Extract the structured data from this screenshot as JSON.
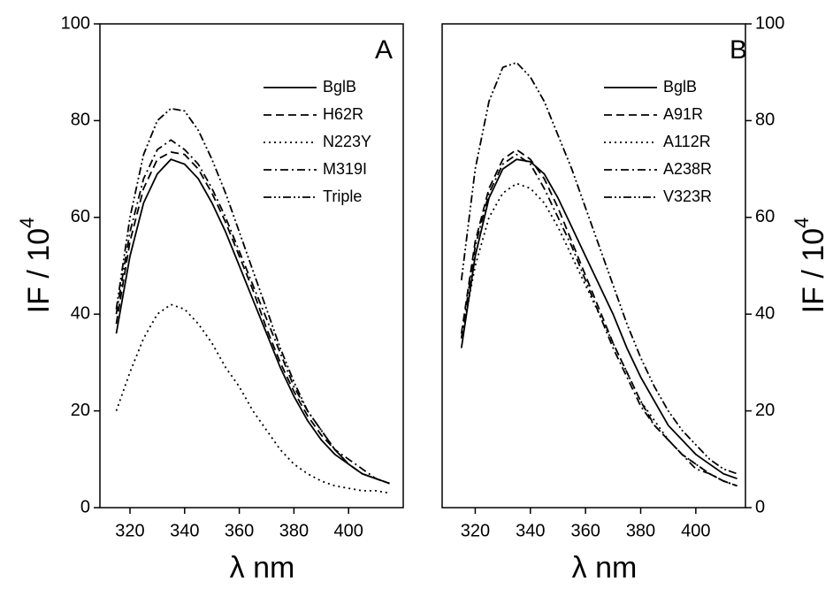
{
  "chart_data": [
    {
      "type": "line",
      "annotation": "A",
      "xlabel": "λ nm",
      "ylabel": "IF / 10",
      "ylabel_exponent": "4",
      "y_axis_side": "left",
      "xlim": [
        309,
        420
      ],
      "xticks": [
        320,
        340,
        360,
        380,
        400
      ],
      "ylim": [
        0,
        100
      ],
      "yticks": [
        0,
        20,
        40,
        60,
        80,
        100
      ],
      "legend": "top-right",
      "x": [
        315,
        320,
        325,
        330,
        335,
        340,
        345,
        350,
        355,
        360,
        365,
        370,
        375,
        380,
        385,
        390,
        395,
        400,
        405,
        410,
        415
      ],
      "series": [
        {
          "name": "BglB",
          "color": "#000000",
          "dash": "solid",
          "values": [
            36,
            52,
            63,
            69,
            72,
            71,
            68,
            63,
            57,
            50,
            43,
            36,
            29,
            23,
            18,
            14,
            11,
            9,
            7,
            6,
            5
          ]
        },
        {
          "name": "H62R",
          "color": "#000000",
          "dash": "dashed",
          "values": [
            38,
            55,
            66,
            72,
            73.5,
            73,
            70,
            65,
            59,
            52,
            45,
            37,
            30,
            24,
            19,
            15,
            12,
            9,
            7,
            6,
            5
          ]
        },
        {
          "name": "N223Y",
          "color": "#000000",
          "dash": "dotted",
          "values": [
            20,
            28,
            35,
            40,
            42,
            41,
            38,
            34,
            29,
            25,
            20,
            16,
            12,
            9,
            7,
            5.5,
            4.5,
            4,
            3.5,
            3.5,
            3
          ]
        },
        {
          "name": "M319I",
          "color": "#000000",
          "dash": "dash-dot",
          "values": [
            40,
            57,
            68,
            74,
            76,
            74,
            71,
            66,
            60,
            53,
            46,
            39,
            32,
            25,
            20,
            16,
            12,
            10,
            8,
            6,
            5
          ]
        },
        {
          "name": "Triple",
          "color": "#000000",
          "dash": "dash-dot-dot",
          "values": [
            41,
            60,
            73,
            80,
            82.5,
            82,
            78,
            72,
            65,
            57,
            49,
            41,
            33,
            26,
            20,
            16,
            12,
            9,
            7,
            6,
            5
          ]
        }
      ]
    },
    {
      "type": "line",
      "annotation": "B",
      "xlabel": "λ nm",
      "ylabel": "IF / 10",
      "ylabel_exponent": "4",
      "y_axis_side": "right",
      "xlim": [
        308,
        418
      ],
      "xticks": [
        320,
        340,
        360,
        380,
        400
      ],
      "ylim": [
        0,
        100
      ],
      "yticks": [
        0,
        20,
        40,
        60,
        80,
        100
      ],
      "legend": "top-right",
      "x": [
        315,
        320,
        325,
        330,
        335,
        340,
        345,
        350,
        355,
        360,
        365,
        370,
        375,
        380,
        385,
        390,
        395,
        400,
        405,
        410,
        415
      ],
      "series": [
        {
          "name": "BglB",
          "color": "#000000",
          "dash": "solid",
          "values": [
            33,
            52,
            64,
            70,
            72,
            71.5,
            69,
            64,
            58,
            52,
            46,
            40,
            33,
            27,
            22,
            17,
            14,
            11,
            9,
            7,
            6
          ]
        },
        {
          "name": "A91R",
          "color": "#000000",
          "dash": "dashed",
          "values": [
            36,
            55,
            66,
            72,
            74,
            72,
            68,
            62,
            55,
            48,
            41,
            34,
            28,
            22,
            17,
            14,
            11,
            9,
            7,
            5.5,
            4.5
          ]
        },
        {
          "name": "A112R",
          "color": "#000000",
          "dash": "dotted",
          "values": [
            35,
            50,
            60,
            65,
            67,
            66,
            63,
            58,
            52,
            46,
            40,
            34,
            28,
            22,
            18,
            14,
            11,
            9,
            7,
            5.5,
            4.5
          ]
        },
        {
          "name": "A238R",
          "color": "#000000",
          "dash": "dash-dot",
          "values": [
            35,
            54,
            65,
            71,
            73,
            71,
            66,
            60,
            54,
            47,
            40,
            33,
            27,
            21,
            17,
            14,
            11,
            8,
            7,
            5.5,
            4.5
          ]
        },
        {
          "name": "V323R",
          "color": "#000000",
          "dash": "dash-dot-dot",
          "values": [
            47,
            70,
            84,
            91,
            92,
            89,
            84,
            77,
            70,
            62,
            54,
            46,
            38,
            31,
            25,
            20,
            16,
            13,
            10,
            8,
            7
          ]
        }
      ]
    }
  ]
}
